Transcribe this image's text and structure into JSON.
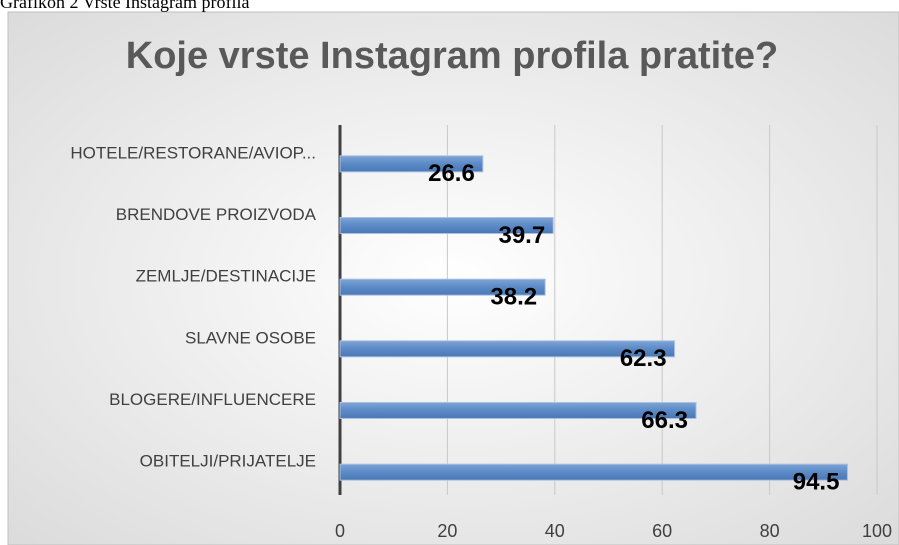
{
  "caption": "Grafikon 2 Vrste Instagram profila",
  "chart_data": {
    "type": "hbar",
    "title": "Koje vrste Instagram profila pratite?",
    "categories": [
      "HOTELE/RESTORANE/AVIOP...",
      "BRENDOVE PROIZVODA",
      "ZEMLJE/DESTINACIJE",
      "SLAVNE OSOBE",
      "BLOGERE/INFLUENCERE",
      "OBITELJI/PRIJATELJE"
    ],
    "values": [
      26.6,
      39.7,
      38.2,
      62.3,
      66.3,
      94.5
    ],
    "color": "#5b8ac6",
    "xlim": [
      0,
      100
    ],
    "xticks": [
      0,
      20,
      40,
      60,
      80,
      100
    ],
    "grid": true
  }
}
